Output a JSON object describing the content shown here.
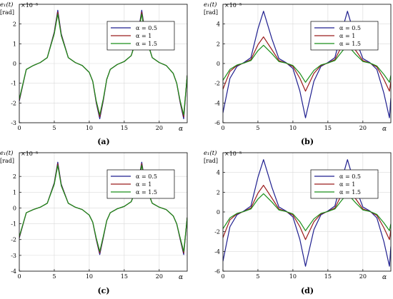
{
  "colors": {
    "alpha_05": "#1f1f8f",
    "alpha_1": "#9b1c1c",
    "alpha_15": "#1a8f1a",
    "axis": "#000000",
    "grid": "#d9d9d9"
  },
  "chart_data": [
    {
      "type": "line",
      "panel_label": "(a)",
      "ylabel": "e₁(t)",
      "yunit": "[rad]",
      "exponent": "×10⁻⁵",
      "xlabel": "α",
      "xlim": [
        0,
        24
      ],
      "ylim": [
        -3,
        3
      ],
      "xticks": [
        0,
        5,
        10,
        15,
        20
      ],
      "yticks": [
        -3,
        -2,
        -1,
        0,
        1,
        2
      ],
      "xtick_labels": [
        "0",
        "5",
        "10",
        "15",
        "20"
      ],
      "ytick_labels": [
        "-3",
        "-2",
        "-1",
        "0",
        "1",
        "2"
      ],
      "grid": true,
      "legend_position": "top-right",
      "legend_labels": [
        "α = 0.5",
        "α = 1",
        "α = 1.5"
      ],
      "series": [
        {
          "name": "α = 0.5",
          "color_key": "alpha_05",
          "x": [
            0,
            1,
            2,
            3,
            4,
            5,
            5.5,
            6,
            7,
            8,
            9,
            10,
            10.5,
            11,
            11.5,
            12,
            12.5,
            13,
            14,
            15,
            16,
            17,
            17.5,
            18,
            19,
            20,
            21,
            22,
            22.5,
            23,
            23.5,
            24
          ],
          "y": [
            -1.9,
            -0.3,
            -0.1,
            0.05,
            0.3,
            1.6,
            2.7,
            1.5,
            0.3,
            0.05,
            -0.1,
            -0.45,
            -0.9,
            -2,
            -2.8,
            -1.9,
            -0.8,
            -0.3,
            -0.05,
            0.1,
            0.4,
            1.6,
            2.7,
            1.5,
            0.3,
            0.05,
            -0.1,
            -0.5,
            -1,
            -2,
            -2.8,
            -0.6
          ]
        },
        {
          "name": "α = 1",
          "color_key": "alpha_1",
          "x": [
            0,
            1,
            2,
            3,
            4,
            5,
            5.5,
            6,
            7,
            8,
            9,
            10,
            10.5,
            11,
            11.5,
            12,
            12.5,
            13,
            14,
            15,
            16,
            17,
            17.5,
            18,
            19,
            20,
            21,
            22,
            22.5,
            23,
            23.5,
            24
          ],
          "y": [
            -1.85,
            -0.3,
            -0.1,
            0.05,
            0.3,
            1.55,
            2.6,
            1.45,
            0.3,
            0.05,
            -0.1,
            -0.45,
            -0.9,
            -1.95,
            -2.7,
            -1.85,
            -0.8,
            -0.3,
            -0.05,
            0.1,
            0.4,
            1.55,
            2.6,
            1.45,
            0.3,
            0.05,
            -0.1,
            -0.5,
            -1,
            -1.95,
            -2.7,
            -0.6
          ]
        },
        {
          "name": "α = 1.5",
          "color_key": "alpha_15",
          "x": [
            0,
            1,
            2,
            3,
            4,
            5,
            5.5,
            6,
            7,
            8,
            9,
            10,
            10.5,
            11,
            11.5,
            12,
            12.5,
            13,
            14,
            15,
            16,
            17,
            17.5,
            18,
            19,
            20,
            21,
            22,
            22.5,
            23,
            23.5,
            24
          ],
          "y": [
            -1.8,
            -0.3,
            -0.1,
            0.05,
            0.3,
            1.5,
            2.5,
            1.4,
            0.3,
            0.05,
            -0.1,
            -0.45,
            -0.9,
            -1.9,
            -2.6,
            -1.8,
            -0.8,
            -0.3,
            -0.05,
            0.1,
            0.4,
            1.5,
            2.5,
            1.4,
            0.3,
            0.05,
            -0.1,
            -0.5,
            -1,
            -1.9,
            -2.6,
            -0.6
          ]
        }
      ]
    },
    {
      "type": "line",
      "panel_label": "(b)",
      "ylabel": "e₁(t)",
      "yunit": "[rad]",
      "exponent": "×10⁻⁵",
      "xlabel": "α",
      "xlim": [
        0,
        24
      ],
      "ylim": [
        -6,
        6
      ],
      "xticks": [
        0,
        5,
        10,
        15,
        20
      ],
      "yticks": [
        -6,
        -4,
        -2,
        0,
        2,
        4
      ],
      "xtick_labels": [
        "0",
        "5",
        "10",
        "15",
        "20"
      ],
      "ytick_labels": [
        "-6",
        "-4",
        "-2",
        "0",
        "2",
        "4"
      ],
      "grid": true,
      "legend_position": "top-right",
      "legend_labels": [
        "α = 0.5",
        "α = 1",
        "α = 1.5"
      ],
      "series": [
        {
          "name": "α = 0.5",
          "color_key": "alpha_05",
          "x": [
            0,
            1,
            2,
            3,
            4,
            5,
            5.8,
            7,
            8,
            9,
            10,
            11,
            11.8,
            13,
            14,
            15,
            16,
            17,
            17.8,
            19,
            20,
            21,
            22,
            23,
            23.8,
            24
          ],
          "y": [
            -5,
            -1.5,
            -0.3,
            0.1,
            0.6,
            3.5,
            5.3,
            2.5,
            0.5,
            0.1,
            -0.5,
            -2.8,
            -5.5,
            -1.8,
            -0.3,
            0.1,
            0.6,
            3.3,
            5.3,
            2.4,
            0.5,
            0.1,
            -0.6,
            -3,
            -5.5,
            -3.5
          ]
        },
        {
          "name": "α = 1",
          "color_key": "alpha_1",
          "x": [
            0,
            1,
            2,
            3,
            4,
            5,
            5.8,
            7,
            8,
            9,
            10,
            11,
            11.8,
            13,
            14,
            15,
            16,
            17,
            17.8,
            19,
            20,
            21,
            22,
            23,
            23.8,
            24
          ],
          "y": [
            -2.6,
            -0.8,
            -0.2,
            0.05,
            0.4,
            1.9,
            2.7,
            1.4,
            0.3,
            0.05,
            -0.3,
            -1.5,
            -2.8,
            -1,
            -0.2,
            0.05,
            0.4,
            1.8,
            2.7,
            1.3,
            0.3,
            0.05,
            -0.35,
            -1.6,
            -2.8,
            -1.8
          ]
        },
        {
          "name": "α = 1.5",
          "color_key": "alpha_15",
          "x": [
            0,
            1,
            2,
            3,
            4,
            5,
            5.8,
            7,
            8,
            9,
            10,
            11,
            11.8,
            13,
            14,
            15,
            16,
            17,
            17.8,
            19,
            20,
            21,
            22,
            23,
            23.8,
            24
          ],
          "y": [
            -1.7,
            -0.6,
            -0.15,
            0.05,
            0.3,
            1.3,
            1.85,
            1,
            0.2,
            0.05,
            -0.2,
            -1,
            -1.9,
            -0.7,
            -0.15,
            0.05,
            0.3,
            1.2,
            1.85,
            0.9,
            0.2,
            0.05,
            -0.25,
            -1.1,
            -1.9,
            -1.2
          ]
        }
      ]
    },
    {
      "type": "line",
      "panel_label": "(c)",
      "ylabel": "e₁(t)",
      "yunit": "[rad]",
      "exponent": "×10⁻⁵",
      "xlabel": "α",
      "xlim": [
        0,
        24
      ],
      "ylim": [
        -4,
        3.5
      ],
      "xticks": [
        0,
        5,
        10,
        15,
        20
      ],
      "yticks": [
        -4,
        -3,
        -2,
        -1,
        0,
        1,
        2
      ],
      "xtick_labels": [
        "0",
        "5",
        "10",
        "15",
        "20"
      ],
      "ytick_labels": [
        "-4",
        "-3",
        "-2",
        "-1",
        "0",
        "1",
        "2"
      ],
      "grid": true,
      "legend_position": "top-right",
      "legend_labels": [
        "α = 0.5",
        "α = 1",
        "α = 1.5"
      ],
      "series": [
        {
          "name": "α = 0.5",
          "color_key": "alpha_05",
          "x": [
            0,
            1,
            2,
            3,
            4,
            5,
            5.5,
            6,
            7,
            8,
            9,
            10,
            10.5,
            11,
            11.5,
            12,
            12.5,
            13,
            14,
            15,
            16,
            17,
            17.5,
            18,
            19,
            20,
            21,
            22,
            22.5,
            23,
            23.5,
            24
          ],
          "y": [
            -1.9,
            -0.3,
            -0.1,
            0.05,
            0.3,
            1.6,
            2.9,
            1.5,
            0.3,
            0.05,
            -0.1,
            -0.45,
            -0.9,
            -2,
            -2.95,
            -1.9,
            -0.8,
            -0.3,
            -0.05,
            0.1,
            0.4,
            1.6,
            2.9,
            1.5,
            0.3,
            0.05,
            -0.1,
            -0.5,
            -1,
            -2,
            -2.95,
            -0.6
          ]
        },
        {
          "name": "α = 1",
          "color_key": "alpha_1",
          "x": [
            0,
            1,
            2,
            3,
            4,
            5,
            5.5,
            6,
            7,
            8,
            9,
            10,
            10.5,
            11,
            11.5,
            12,
            12.5,
            13,
            14,
            15,
            16,
            17,
            17.5,
            18,
            19,
            20,
            21,
            22,
            22.5,
            23,
            23.5,
            24
          ],
          "y": [
            -1.85,
            -0.3,
            -0.1,
            0.05,
            0.3,
            1.55,
            2.8,
            1.45,
            0.3,
            0.05,
            -0.1,
            -0.45,
            -0.9,
            -1.95,
            -2.85,
            -1.85,
            -0.8,
            -0.3,
            -0.05,
            0.1,
            0.4,
            1.55,
            2.8,
            1.45,
            0.3,
            0.05,
            -0.1,
            -0.5,
            -1,
            -1.95,
            -2.85,
            -0.6
          ]
        },
        {
          "name": "α = 1.5",
          "color_key": "alpha_15",
          "x": [
            0,
            1,
            2,
            3,
            4,
            5,
            5.5,
            6,
            7,
            8,
            9,
            10,
            10.5,
            11,
            11.5,
            12,
            12.5,
            13,
            14,
            15,
            16,
            17,
            17.5,
            18,
            19,
            20,
            21,
            22,
            22.5,
            23,
            23.5,
            24
          ],
          "y": [
            -1.8,
            -0.3,
            -0.1,
            0.05,
            0.3,
            1.5,
            2.7,
            1.4,
            0.3,
            0.05,
            -0.1,
            -0.45,
            -0.9,
            -1.9,
            -2.75,
            -1.8,
            -0.8,
            -0.3,
            -0.05,
            0.1,
            0.4,
            1.5,
            2.7,
            1.4,
            0.3,
            0.05,
            -0.1,
            -0.5,
            -1,
            -1.9,
            -2.75,
            -0.6
          ]
        }
      ]
    },
    {
      "type": "line",
      "panel_label": "(d)",
      "ylabel": "e₁(t)",
      "yunit": "[rad]",
      "exponent": "×10⁻⁵",
      "xlabel": "α",
      "xlim": [
        0,
        24
      ],
      "ylim": [
        -6,
        6
      ],
      "xticks": [
        0,
        5,
        10,
        15,
        20
      ],
      "yticks": [
        -6,
        -4,
        -2,
        0,
        2,
        4
      ],
      "xtick_labels": [
        "0",
        "5",
        "10",
        "15",
        "20"
      ],
      "ytick_labels": [
        "-6",
        "-4",
        "-2",
        "0",
        "2",
        "4"
      ],
      "grid": true,
      "legend_position": "top-right",
      "legend_labels": [
        "α = 0.5",
        "α = 1",
        "α = 1.5"
      ],
      "series": [
        {
          "name": "α = 0.5",
          "color_key": "alpha_05",
          "x": [
            0,
            1,
            2,
            3,
            4,
            5,
            5.8,
            7,
            8,
            9,
            10,
            11,
            11.8,
            13,
            14,
            15,
            16,
            17,
            17.8,
            19,
            20,
            21,
            22,
            23,
            23.8,
            24
          ],
          "y": [
            -5,
            -1.5,
            -0.3,
            0.1,
            0.6,
            3.5,
            5.3,
            2.5,
            0.5,
            0.1,
            -0.5,
            -2.8,
            -5.5,
            -1.8,
            -0.3,
            0.1,
            0.6,
            3.3,
            5.3,
            2.4,
            0.5,
            0.1,
            -0.6,
            -3,
            -5.5,
            -3.5
          ]
        },
        {
          "name": "α = 1",
          "color_key": "alpha_1",
          "x": [
            0,
            1,
            2,
            3,
            4,
            5,
            5.8,
            7,
            8,
            9,
            10,
            11,
            11.8,
            13,
            14,
            15,
            16,
            17,
            17.8,
            19,
            20,
            21,
            22,
            23,
            23.8,
            24
          ],
          "y": [
            -2.6,
            -0.8,
            -0.2,
            0.05,
            0.4,
            1.9,
            2.7,
            1.4,
            0.3,
            0.05,
            -0.3,
            -1.5,
            -2.8,
            -1,
            -0.2,
            0.05,
            0.4,
            1.8,
            2.7,
            1.3,
            0.3,
            0.05,
            -0.35,
            -1.6,
            -2.8,
            -1.8
          ]
        },
        {
          "name": "α = 1.5",
          "color_key": "alpha_15",
          "x": [
            0,
            1,
            2,
            3,
            4,
            5,
            5.8,
            7,
            8,
            9,
            10,
            11,
            11.8,
            13,
            14,
            15,
            16,
            17,
            17.8,
            19,
            20,
            21,
            22,
            23,
            23.8,
            24
          ],
          "y": [
            -1.7,
            -0.6,
            -0.15,
            0.05,
            0.3,
            1.3,
            1.85,
            1,
            0.2,
            0.05,
            -0.2,
            -1,
            -1.9,
            -0.7,
            -0.15,
            0.05,
            0.3,
            1.2,
            1.85,
            0.9,
            0.2,
            0.05,
            -0.25,
            -1.1,
            -1.9,
            -1.2
          ]
        }
      ]
    }
  ]
}
